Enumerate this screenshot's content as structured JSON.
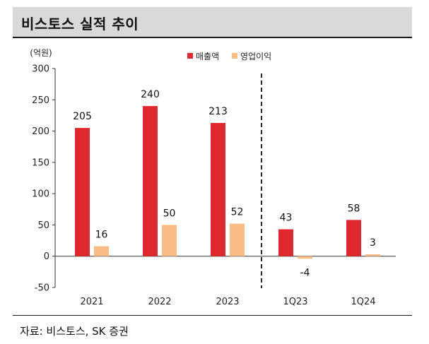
{
  "title": "비스토스 실적 추이",
  "source": "자료: 비스토스, SK 증권",
  "chart_data": {
    "type": "bar",
    "unit_label": "(억원)",
    "categories": [
      "2021",
      "2022",
      "2023",
      "1Q23",
      "1Q24"
    ],
    "series": [
      {
        "name": "매출액",
        "color": "#e0282e",
        "values": [
          205,
          240,
          213,
          43,
          58
        ]
      },
      {
        "name": "영업이익",
        "color": "#f8bd84",
        "values": [
          16,
          50,
          52,
          -4,
          3
        ]
      }
    ],
    "ylim": [
      -50,
      300
    ],
    "yticks": [
      -50,
      0,
      50,
      100,
      150,
      200,
      250,
      300
    ],
    "divider": "dashed line between 2023 and 1Q23",
    "legend_position": "top-center",
    "grid": false
  }
}
